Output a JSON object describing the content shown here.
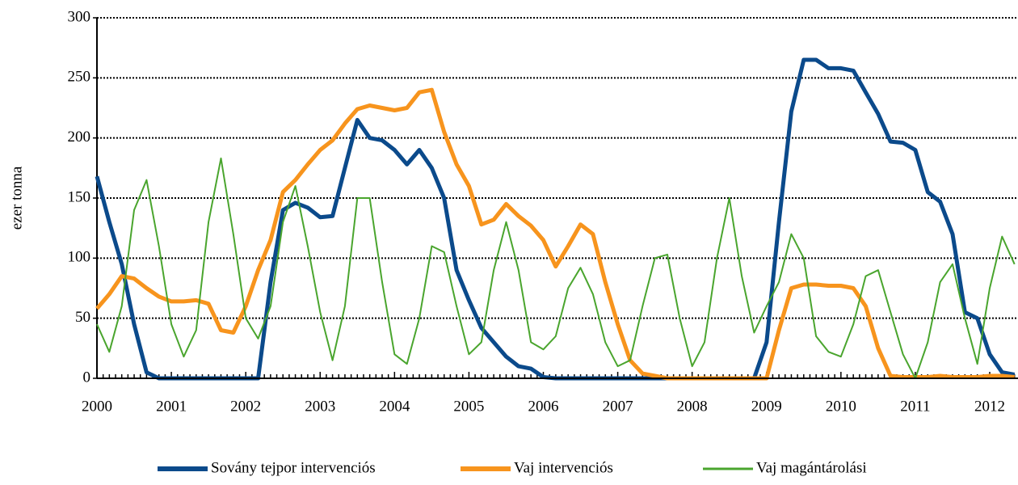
{
  "chart_data": {
    "type": "line",
    "y_label": "ezer tonna",
    "categories": [
      "2000",
      null,
      null,
      null,
      null,
      null,
      "2001",
      null,
      null,
      null,
      null,
      null,
      "2002",
      null,
      null,
      null,
      null,
      null,
      "2003",
      null,
      null,
      null,
      null,
      null,
      "2004",
      null,
      null,
      null,
      null,
      null,
      "2005",
      null,
      null,
      null,
      null,
      null,
      "2006",
      null,
      null,
      null,
      null,
      null,
      "2007",
      null,
      null,
      null,
      null,
      null,
      "2008",
      null,
      null,
      null,
      null,
      null,
      "2009",
      null,
      null,
      null,
      null,
      null,
      "2010",
      null,
      null,
      null,
      null,
      null,
      "2011",
      null,
      null,
      null,
      null,
      null,
      "2012",
      null,
      null
    ],
    "series": [
      {
        "name": "Sovány tejpor intervenciós",
        "color": "#0b4a8b",
        "width": 5,
        "values": [
          168,
          130,
          95,
          45,
          5,
          0,
          0,
          0,
          0,
          0,
          0,
          0,
          0,
          0,
          80,
          140,
          146,
          142,
          134,
          135,
          175,
          215,
          200,
          198,
          190,
          178,
          190,
          175,
          150,
          90,
          65,
          42,
          30,
          18,
          10,
          8,
          1,
          0,
          0,
          0,
          0,
          0,
          0,
          0,
          0,
          0,
          0,
          0,
          0,
          0,
          0,
          0,
          0,
          0,
          30,
          130,
          222,
          265,
          265,
          258,
          258,
          256,
          238,
          220,
          197,
          196,
          190,
          155,
          147,
          120,
          55,
          50,
          20,
          5,
          3
        ]
      },
      {
        "name": "Vaj intervenciós",
        "color": "#f7941d",
        "width": 5,
        "values": [
          58,
          70,
          85,
          83,
          75,
          68,
          64,
          64,
          65,
          62,
          40,
          38,
          60,
          90,
          115,
          155,
          165,
          178,
          190,
          198,
          212,
          224,
          227,
          225,
          223,
          225,
          238,
          240,
          205,
          178,
          160,
          128,
          132,
          145,
          135,
          127,
          115,
          93,
          110,
          128,
          120,
          80,
          45,
          15,
          4,
          2,
          0,
          0,
          0,
          0,
          0,
          0,
          0,
          0,
          0,
          40,
          75,
          78,
          78,
          77,
          77,
          75,
          60,
          25,
          2,
          1,
          1,
          1,
          2,
          1,
          1,
          1,
          2,
          2,
          1
        ]
      },
      {
        "name": "Vaj magántárolási",
        "color": "#4aa52e",
        "width": 2,
        "values": [
          45,
          22,
          60,
          140,
          165,
          110,
          45,
          18,
          40,
          130,
          183,
          120,
          50,
          33,
          60,
          130,
          160,
          110,
          55,
          15,
          60,
          150,
          150,
          80,
          20,
          12,
          50,
          110,
          105,
          60,
          20,
          30,
          90,
          130,
          90,
          30,
          24,
          35,
          75,
          92,
          70,
          30,
          10,
          15,
          60,
          100,
          103,
          50,
          10,
          30,
          100,
          150,
          85,
          38,
          60,
          80,
          120,
          100,
          35,
          22,
          18,
          45,
          85,
          90,
          55,
          20,
          0,
          30,
          80,
          95,
          50,
          12,
          75,
          118,
          95
        ]
      }
    ],
    "ylim": [
      0,
      300
    ],
    "yticks": [
      0,
      50,
      100,
      150,
      200,
      250,
      300
    ],
    "grid": true,
    "legend": "bottom"
  }
}
